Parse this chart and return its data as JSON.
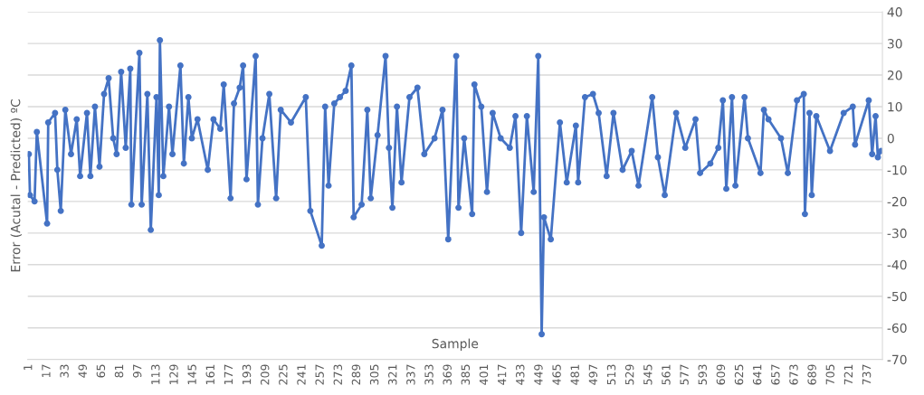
{
  "chart_data": {
    "type": "line",
    "xlabel": "Sample",
    "ylabel": "Error (Acutal - Predicted) ºC",
    "marker": "circle",
    "line_style": "solid",
    "grid": "y",
    "xlim": [
      0,
      750
    ],
    "xticks": [
      1,
      17,
      33,
      49,
      65,
      81,
      97,
      113,
      129,
      145,
      161,
      177,
      193,
      209,
      225,
      241,
      257,
      273,
      289,
      305,
      321,
      337,
      353,
      369,
      385,
      401,
      417,
      433,
      449,
      465,
      481,
      497,
      513,
      529,
      545,
      561,
      577,
      593,
      609,
      625,
      641,
      657,
      673,
      689,
      705,
      721,
      737
    ],
    "ylim": [
      -70,
      40
    ],
    "yticks": [
      -70,
      -60,
      -50,
      -40,
      -30,
      -20,
      -10,
      0,
      10,
      20,
      30,
      40
    ],
    "series": [
      {
        "color": "#4472c4",
        "x": [
          1,
          2,
          6,
          8,
          17,
          18,
          24,
          26,
          29,
          33,
          38,
          43,
          46,
          52,
          55,
          59,
          63,
          67,
          71,
          75,
          78,
          82,
          86,
          90,
          91,
          98,
          100,
          105,
          108,
          113,
          115,
          116,
          119,
          124,
          127,
          134,
          137,
          141,
          144,
          149,
          158,
          163,
          169,
          172,
          178,
          181,
          186,
          189,
          192,
          200,
          202,
          206,
          212,
          218,
          222,
          231,
          244,
          248,
          258,
          261,
          264,
          269,
          274,
          279,
          284,
          286,
          293,
          298,
          301,
          307,
          314,
          317,
          320,
          324,
          328,
          335,
          342,
          348,
          357,
          364,
          369,
          376,
          378,
          383,
          390,
          392,
          398,
          403,
          408,
          415,
          423,
          428,
          433,
          438,
          444,
          448,
          451,
          453,
          459,
          467,
          473,
          481,
          483,
          489,
          496,
          501,
          508,
          514,
          522,
          530,
          536,
          548,
          553,
          559,
          569,
          577,
          586,
          590,
          599,
          606,
          610,
          613,
          618,
          621,
          629,
          632,
          643,
          646,
          650,
          661,
          667,
          675,
          681,
          682,
          686,
          688,
          692,
          704,
          716,
          724,
          726,
          738,
          741,
          744,
          746,
          749
        ],
        "values": [
          -5,
          -18,
          -20,
          2,
          -27,
          5,
          8,
          -10,
          -23,
          9,
          -5,
          6,
          -12,
          8,
          -12,
          10,
          -9,
          14,
          19,
          0,
          -5,
          21,
          -3,
          22,
          -21,
          27,
          -21,
          14,
          -29,
          13,
          -18,
          31,
          -12,
          10,
          -5,
          23,
          -8,
          13,
          0,
          6,
          -10,
          6,
          3,
          17,
          -19,
          11,
          16,
          23,
          -13,
          26,
          -21,
          0,
          14,
          -19,
          9,
          5,
          13,
          -23,
          -34,
          10,
          -15,
          11,
          13,
          15,
          23,
          -25,
          -21,
          9,
          -19,
          1,
          26,
          -3,
          -22,
          10,
          -14,
          13,
          16,
          -5,
          0,
          9,
          -32,
          26,
          -22,
          0,
          -24,
          17,
          10,
          -17,
          8,
          0,
          -3,
          7,
          -30,
          7,
          -17,
          26,
          -62,
          -25,
          -32,
          5,
          -14,
          4,
          -14,
          13,
          14,
          8,
          -12,
          8,
          -10,
          -4,
          -15,
          13,
          -6,
          -18,
          8,
          -3,
          6,
          -11,
          -8,
          -3,
          12,
          -16,
          13,
          -15,
          13,
          0,
          -11,
          9,
          6,
          0,
          -11,
          12,
          14,
          -24,
          8,
          -18,
          7,
          -4,
          8,
          10,
          -2,
          12,
          -5,
          7,
          -6,
          -4
        ]
      }
    ]
  }
}
